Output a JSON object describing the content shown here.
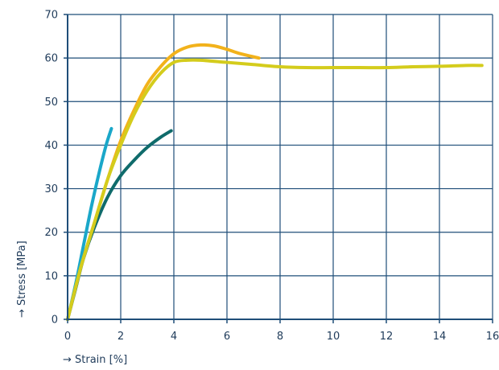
{
  "chart_data": {
    "type": "line",
    "xlabel": "→ Strain [%]",
    "ylabel": "→ Stress [MPa]",
    "xlim": [
      0,
      16
    ],
    "ylim": [
      0,
      70
    ],
    "xticks": [
      0,
      2,
      4,
      6,
      8,
      10,
      12,
      14,
      16
    ],
    "yticks": [
      0,
      10,
      20,
      30,
      40,
      50,
      60,
      70
    ],
    "grid": true,
    "colors": {
      "axis": "#1f4e79",
      "grid": "#1f4e79",
      "tick_text": "#1f3b5a"
    },
    "series": [
      {
        "color": "#1aa7c9",
        "x": [
          0,
          0.3,
          0.6,
          0.9,
          1.2,
          1.45,
          1.65
        ],
        "y": [
          0,
          8,
          17,
          26,
          34,
          40,
          43.8
        ]
      },
      {
        "color": "#0f6b6b",
        "x": [
          0,
          0.3,
          0.6,
          1.0,
          1.5,
          2.0,
          2.5,
          3.0,
          3.5,
          3.9
        ],
        "y": [
          0,
          7,
          14,
          21,
          28,
          33,
          36.5,
          39.5,
          41.8,
          43.3
        ]
      },
      {
        "color": "#f2b21b",
        "x": [
          0,
          0.5,
          1.0,
          1.5,
          2.0,
          2.5,
          3.0,
          3.5,
          4.0,
          4.5,
          5.0,
          5.5,
          6.0,
          6.5,
          7.2
        ],
        "y": [
          0,
          12,
          22,
          32,
          41,
          48,
          54,
          58,
          61,
          62.5,
          63,
          62.8,
          62,
          61,
          60
        ]
      },
      {
        "color": "#d4cc1c",
        "x": [
          0,
          0.5,
          1.0,
          1.5,
          2.0,
          2.5,
          3.0,
          3.5,
          4.0,
          4.5,
          5.0,
          6.0,
          7.0,
          8.0,
          9.0,
          10.0,
          11.0,
          12.0,
          13.0,
          14.0,
          15.0,
          15.6
        ],
        "y": [
          0,
          12,
          22,
          32,
          40,
          47,
          52.5,
          56.5,
          59,
          59.5,
          59.5,
          59,
          58.5,
          58,
          57.8,
          57.8,
          57.8,
          57.8,
          58,
          58.1,
          58.3,
          58.3
        ]
      }
    ]
  }
}
